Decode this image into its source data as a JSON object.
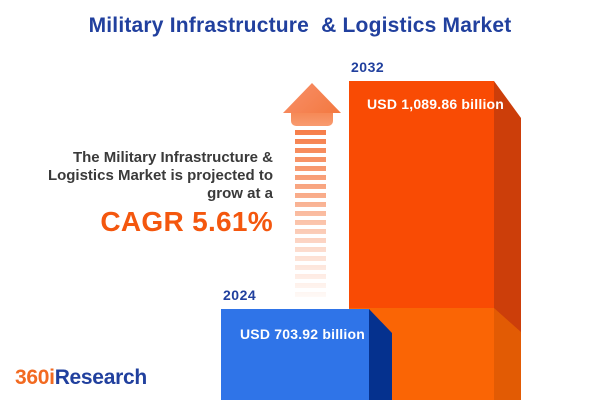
{
  "title": "Military Infrastructure  & Logistics Market",
  "projection": {
    "line1": "The Military Infrastructure &",
    "line2": "Logistics Market is projected to",
    "line3": "grow at a",
    "cagr": "CAGR 5.61%"
  },
  "chart_data": {
    "type": "bar",
    "title": "Military Infrastructure  & Logistics Market",
    "categories": [
      "2024",
      "2032"
    ],
    "values": [
      703.92,
      1089.86
    ],
    "unit": "USD billion",
    "cagr_percent": 5.61,
    "legend_position": "none",
    "grid": false,
    "bars": [
      {
        "year": "2024",
        "value": 703.92,
        "value_label": "USD 703.92 billion",
        "front_color": "#2F74E8",
        "side_color": "#05318E"
      },
      {
        "year": "2032",
        "value": 1089.86,
        "value_label": "USD 1,089.86 billion",
        "front_color": "#F94B04",
        "side_color": "#CC3E0A",
        "lower_front_color": "#FA6505",
        "lower_side_color": "#E25B04"
      }
    ]
  },
  "colors": {
    "brand_blue": "#21409E",
    "accent_orange": "#F4570E",
    "text_gray": "#3A3A3A",
    "arrow_orange": "#F5773F",
    "background": "#FFFFFF"
  },
  "logo": {
    "prefix": "360i",
    "suffix": "Research"
  }
}
